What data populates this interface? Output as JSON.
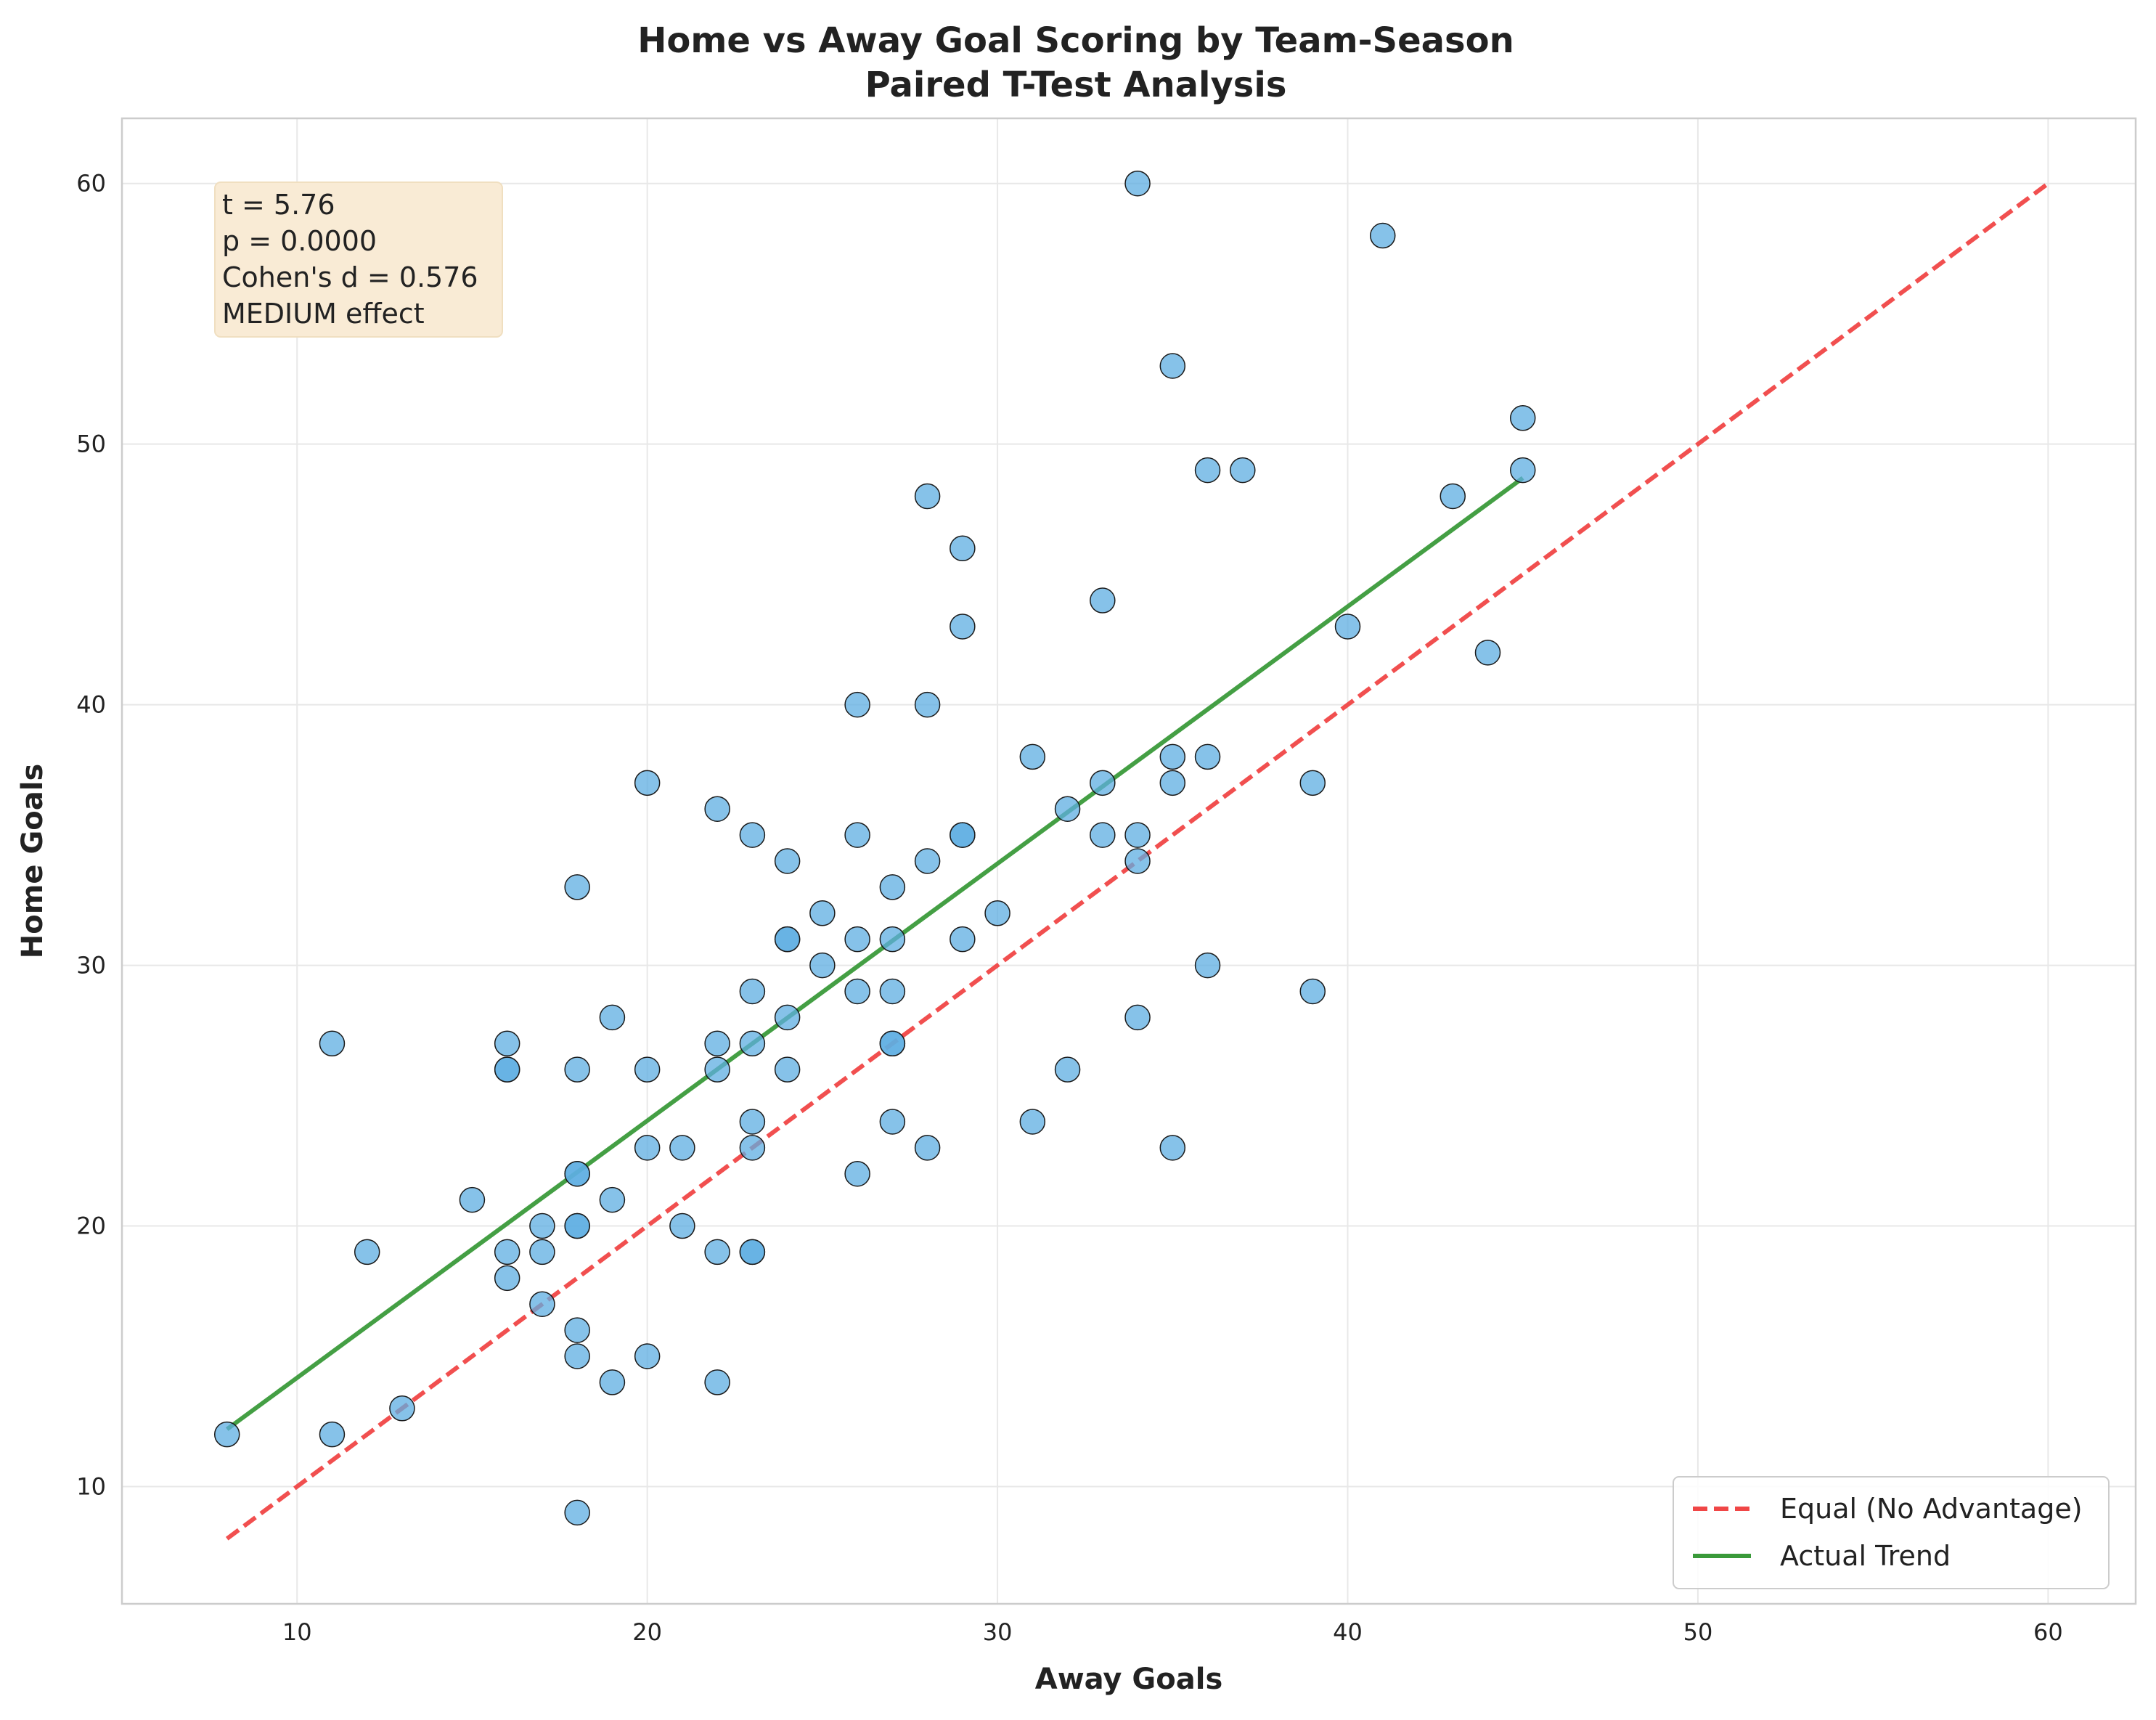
{
  "chart_data": {
    "type": "scatter",
    "title": "Home vs Away Goal Scoring by Team-Season",
    "subtitle": "Paired T-Test Analysis",
    "xlabel": "Away Goals",
    "ylabel": "Home Goals",
    "xlim": [
      5,
      62.5
    ],
    "ylim": [
      5.5,
      62.5
    ],
    "xticks": [
      10,
      20,
      30,
      40,
      50,
      60
    ],
    "yticks": [
      10,
      20,
      30,
      40,
      50,
      60
    ],
    "grid": true,
    "legend_position": "bottom-right",
    "stats_box": {
      "lines": [
        "t = 5.76",
        "p = 0.0000",
        "Cohen's d = 0.576",
        "MEDIUM effect"
      ]
    },
    "colors": {
      "points": "#5dade2",
      "equal_line": "#f04646",
      "trend_line": "#3a9a3a",
      "stats_box_bg": "#f9ebd5"
    },
    "lines": [
      {
        "name": "Equal (No Advantage)",
        "style": "dashed",
        "x": [
          8,
          60
        ],
        "y": [
          8,
          60
        ]
      },
      {
        "name": "Actual Trend",
        "style": "solid",
        "x": [
          8,
          45
        ],
        "y": [
          12.2,
          48.7
        ]
      }
    ],
    "points": [
      {
        "x": 34,
        "y": 60
      },
      {
        "x": 41,
        "y": 58
      },
      {
        "x": 35,
        "y": 53
      },
      {
        "x": 45,
        "y": 51
      },
      {
        "x": 45,
        "y": 49
      },
      {
        "x": 36,
        "y": 49
      },
      {
        "x": 37,
        "y": 49
      },
      {
        "x": 43,
        "y": 48
      },
      {
        "x": 28,
        "y": 48
      },
      {
        "x": 29,
        "y": 46
      },
      {
        "x": 33,
        "y": 44
      },
      {
        "x": 29,
        "y": 43
      },
      {
        "x": 40,
        "y": 43
      },
      {
        "x": 44,
        "y": 42
      },
      {
        "x": 26,
        "y": 40
      },
      {
        "x": 28,
        "y": 40
      },
      {
        "x": 31,
        "y": 38
      },
      {
        "x": 35,
        "y": 38
      },
      {
        "x": 36,
        "y": 38
      },
      {
        "x": 20,
        "y": 37
      },
      {
        "x": 33,
        "y": 37
      },
      {
        "x": 35,
        "y": 37
      },
      {
        "x": 39,
        "y": 37
      },
      {
        "x": 22,
        "y": 36
      },
      {
        "x": 32,
        "y": 36
      },
      {
        "x": 23,
        "y": 35
      },
      {
        "x": 26,
        "y": 35
      },
      {
        "x": 29,
        "y": 35
      },
      {
        "x": 29,
        "y": 35
      },
      {
        "x": 33,
        "y": 35
      },
      {
        "x": 34,
        "y": 35
      },
      {
        "x": 24,
        "y": 34
      },
      {
        "x": 28,
        "y": 34
      },
      {
        "x": 34,
        "y": 34
      },
      {
        "x": 18,
        "y": 33
      },
      {
        "x": 27,
        "y": 33
      },
      {
        "x": 25,
        "y": 32
      },
      {
        "x": 30,
        "y": 32
      },
      {
        "x": 24,
        "y": 31
      },
      {
        "x": 24,
        "y": 31
      },
      {
        "x": 26,
        "y": 31
      },
      {
        "x": 27,
        "y": 31
      },
      {
        "x": 29,
        "y": 31
      },
      {
        "x": 25,
        "y": 30
      },
      {
        "x": 36,
        "y": 30
      },
      {
        "x": 23,
        "y": 29
      },
      {
        "x": 26,
        "y": 29
      },
      {
        "x": 27,
        "y": 29
      },
      {
        "x": 39,
        "y": 29
      },
      {
        "x": 19,
        "y": 28
      },
      {
        "x": 24,
        "y": 28
      },
      {
        "x": 34,
        "y": 28
      },
      {
        "x": 11,
        "y": 27
      },
      {
        "x": 16,
        "y": 27
      },
      {
        "x": 22,
        "y": 27
      },
      {
        "x": 23,
        "y": 27
      },
      {
        "x": 27,
        "y": 27
      },
      {
        "x": 27,
        "y": 27
      },
      {
        "x": 16,
        "y": 26
      },
      {
        "x": 16,
        "y": 26
      },
      {
        "x": 18,
        "y": 26
      },
      {
        "x": 20,
        "y": 26
      },
      {
        "x": 22,
        "y": 26
      },
      {
        "x": 24,
        "y": 26
      },
      {
        "x": 32,
        "y": 26
      },
      {
        "x": 23,
        "y": 24
      },
      {
        "x": 27,
        "y": 24
      },
      {
        "x": 31,
        "y": 24
      },
      {
        "x": 20,
        "y": 23
      },
      {
        "x": 21,
        "y": 23
      },
      {
        "x": 23,
        "y": 23
      },
      {
        "x": 28,
        "y": 23
      },
      {
        "x": 35,
        "y": 23
      },
      {
        "x": 18,
        "y": 22
      },
      {
        "x": 18,
        "y": 22
      },
      {
        "x": 26,
        "y": 22
      },
      {
        "x": 15,
        "y": 21
      },
      {
        "x": 19,
        "y": 21
      },
      {
        "x": 17,
        "y": 20
      },
      {
        "x": 18,
        "y": 20
      },
      {
        "x": 18,
        "y": 20
      },
      {
        "x": 21,
        "y": 20
      },
      {
        "x": 12,
        "y": 19
      },
      {
        "x": 16,
        "y": 19
      },
      {
        "x": 17,
        "y": 19
      },
      {
        "x": 22,
        "y": 19
      },
      {
        "x": 23,
        "y": 19
      },
      {
        "x": 23,
        "y": 19
      },
      {
        "x": 16,
        "y": 18
      },
      {
        "x": 17,
        "y": 17
      },
      {
        "x": 18,
        "y": 16
      },
      {
        "x": 18,
        "y": 15
      },
      {
        "x": 20,
        "y": 15
      },
      {
        "x": 19,
        "y": 14
      },
      {
        "x": 22,
        "y": 14
      },
      {
        "x": 13,
        "y": 13
      },
      {
        "x": 8,
        "y": 12
      },
      {
        "x": 11,
        "y": 12
      },
      {
        "x": 18,
        "y": 9
      }
    ]
  }
}
